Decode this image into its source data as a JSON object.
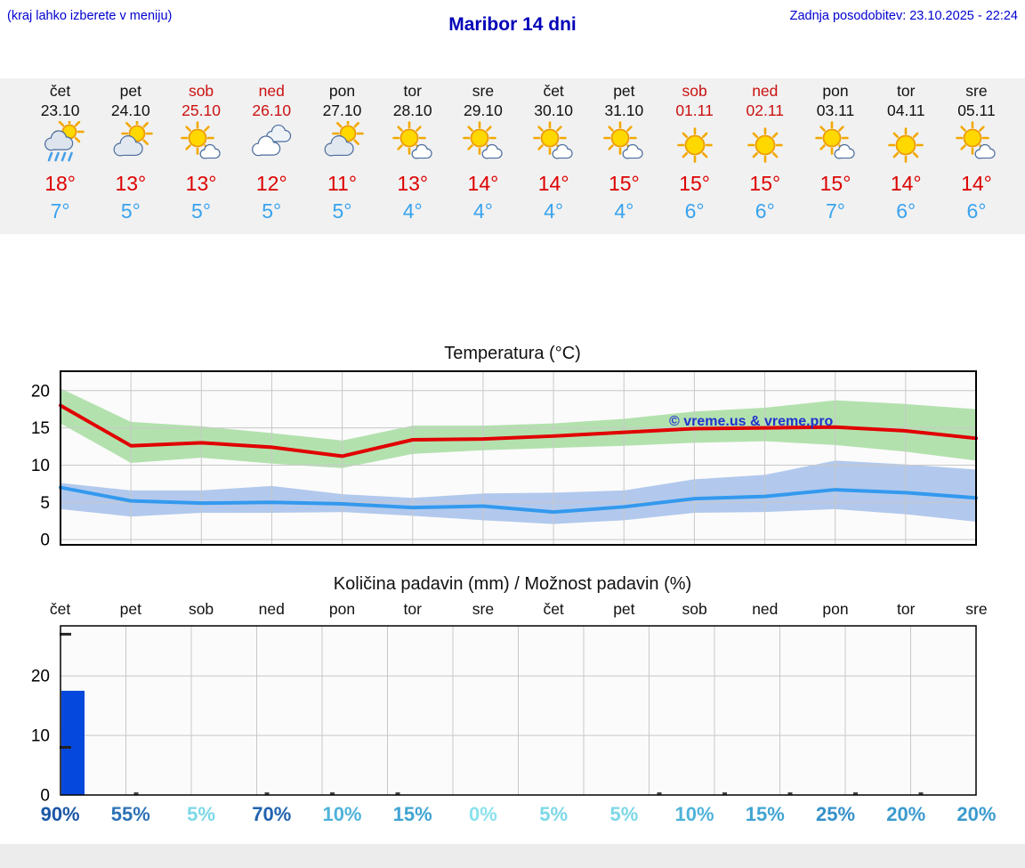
{
  "header": {
    "left_note": "(kraj lahko izberete v meniju)",
    "title": "Maribor 14 dni",
    "updated": "Zadnja posodobitev: 23.10.2025 - 22:24"
  },
  "colors": {
    "header_blue": "#0000d0",
    "title_blue": "#0000b8",
    "weekend_red": "#cc1111",
    "high_temp_red": "#dd0000",
    "low_temp_blue": "#39a3ef",
    "strip_bg": "#f1f1f1",
    "bottom_bar": "#ececec",
    "temp_max_line": "#e10000",
    "temp_max_band": "#a6dca0",
    "temp_min_line": "#3399ee",
    "temp_min_band": "#a4c0ea",
    "precip_bar": "#0548dd",
    "watermark": "#2233cc",
    "grid": "#c8c8c8",
    "plot_bg": "#fbfbfb"
  },
  "forecast": {
    "days": [
      {
        "name": "čet",
        "date": "23.10",
        "weekend": false,
        "icon": "rain-sun",
        "high": "18°",
        "low": "7°"
      },
      {
        "name": "pet",
        "date": "24.10",
        "weekend": false,
        "icon": "cloud-sun",
        "high": "13°",
        "low": "5°"
      },
      {
        "name": "sob",
        "date": "25.10",
        "weekend": true,
        "icon": "sun-cloud",
        "high": "13°",
        "low": "5°"
      },
      {
        "name": "ned",
        "date": "26.10",
        "weekend": true,
        "icon": "cloud",
        "high": "12°",
        "low": "5°"
      },
      {
        "name": "pon",
        "date": "27.10",
        "weekend": false,
        "icon": "cloud-sun",
        "high": "11°",
        "low": "5°"
      },
      {
        "name": "tor",
        "date": "28.10",
        "weekend": false,
        "icon": "sun-cloud",
        "high": "13°",
        "low": "4°"
      },
      {
        "name": "sre",
        "date": "29.10",
        "weekend": false,
        "icon": "sun-cloud",
        "high": "14°",
        "low": "4°"
      },
      {
        "name": "čet",
        "date": "30.10",
        "weekend": false,
        "icon": "sun-cloud",
        "high": "14°",
        "low": "4°"
      },
      {
        "name": "pet",
        "date": "31.10",
        "weekend": false,
        "icon": "sun-cloud",
        "high": "15°",
        "low": "4°"
      },
      {
        "name": "sob",
        "date": "01.11",
        "weekend": true,
        "icon": "sun",
        "high": "15°",
        "low": "6°"
      },
      {
        "name": "ned",
        "date": "02.11",
        "weekend": true,
        "icon": "sun",
        "high": "15°",
        "low": "6°"
      },
      {
        "name": "pon",
        "date": "03.11",
        "weekend": false,
        "icon": "sun-cloud",
        "high": "15°",
        "low": "7°"
      },
      {
        "name": "tor",
        "date": "04.11",
        "weekend": false,
        "icon": "sun",
        "high": "14°",
        "low": "6°"
      },
      {
        "name": "sre",
        "date": "05.11",
        "weekend": false,
        "icon": "sun-cloud",
        "high": "14°",
        "low": "6°"
      }
    ]
  },
  "chart_data": [
    {
      "type": "line",
      "title": "Temperatura (°C)",
      "categories": [
        "čet",
        "pet",
        "sob",
        "ned",
        "pon",
        "tor",
        "sre",
        "čet",
        "pet",
        "sob",
        "ned",
        "pon",
        "tor",
        "sre"
      ],
      "series": [
        {
          "name": "temp_max",
          "values": [
            18,
            12.6,
            13,
            12.4,
            11.2,
            13.4,
            13.5,
            13.9,
            14.4,
            14.9,
            15,
            15.1,
            14.6,
            13.6
          ]
        },
        {
          "name": "temp_max_range_upper",
          "values": [
            20.3,
            15.8,
            15.2,
            14.3,
            13.3,
            15.3,
            15.3,
            15.6,
            16.2,
            17.2,
            17.7,
            18.7,
            18.2,
            17.5
          ]
        },
        {
          "name": "temp_max_range_lower",
          "values": [
            15.6,
            10.3,
            11,
            10.2,
            9.6,
            11.5,
            12,
            12.3,
            12.6,
            13,
            13.2,
            12.7,
            11.8,
            10.6
          ]
        },
        {
          "name": "temp_min",
          "values": [
            7,
            5.2,
            4.9,
            5,
            4.8,
            4.3,
            4.5,
            3.7,
            4.4,
            5.5,
            5.8,
            6.7,
            6.3,
            5.6
          ]
        },
        {
          "name": "temp_min_range_upper",
          "values": [
            7.6,
            6.6,
            6.6,
            7.2,
            6.1,
            5.6,
            6.2,
            6.3,
            6.6,
            8.1,
            8.7,
            10.6,
            10.1,
            9.4
          ]
        },
        {
          "name": "temp_min_range_lower",
          "values": [
            4.1,
            3.1,
            3.6,
            3.6,
            3.7,
            3.2,
            2.6,
            2.1,
            2.6,
            3.6,
            3.7,
            4.1,
            3.4,
            2.4
          ]
        }
      ],
      "ylim": [
        -0.7,
        22.6
      ],
      "yticks": [
        0,
        5,
        10,
        15,
        20
      ],
      "grid": true,
      "legend": "none",
      "watermark": "© vreme.us & vreme.pro"
    },
    {
      "type": "bar",
      "title": "Količina padavin (mm) / Možnost padavin (%)",
      "categories": [
        "čet",
        "pet",
        "sob",
        "ned",
        "pon",
        "tor",
        "sre",
        "čet",
        "pet",
        "sob",
        "ned",
        "pon",
        "tor",
        "sre"
      ],
      "values_mm": [
        17.5,
        0.2,
        0,
        0.2,
        0.15,
        0.15,
        0,
        0,
        0,
        0.15,
        0.15,
        0.2,
        0.15,
        0.15
      ],
      "day1_range_mm": [
        8,
        27
      ],
      "probabilities": [
        {
          "value": "90%",
          "color": "#1b57a6"
        },
        {
          "value": "55%",
          "color": "#2d72b6"
        },
        {
          "value": "5%",
          "color": "#7cd8e6"
        },
        {
          "value": "70%",
          "color": "#2163ae"
        },
        {
          "value": "10%",
          "color": "#4fb3da"
        },
        {
          "value": "15%",
          "color": "#41a4d2"
        },
        {
          "value": "0%",
          "color": "#8ae2ec"
        },
        {
          "value": "5%",
          "color": "#7cd8e6"
        },
        {
          "value": "5%",
          "color": "#7cd8e6"
        },
        {
          "value": "10%",
          "color": "#4fb3da"
        },
        {
          "value": "15%",
          "color": "#41a4d2"
        },
        {
          "value": "25%",
          "color": "#3590c9"
        },
        {
          "value": "20%",
          "color": "#3b9ace"
        },
        {
          "value": "20%",
          "color": "#3b9ace"
        }
      ],
      "ylim": [
        0,
        28.4
      ],
      "yticks": [
        0,
        10,
        20
      ],
      "grid": true
    }
  ]
}
